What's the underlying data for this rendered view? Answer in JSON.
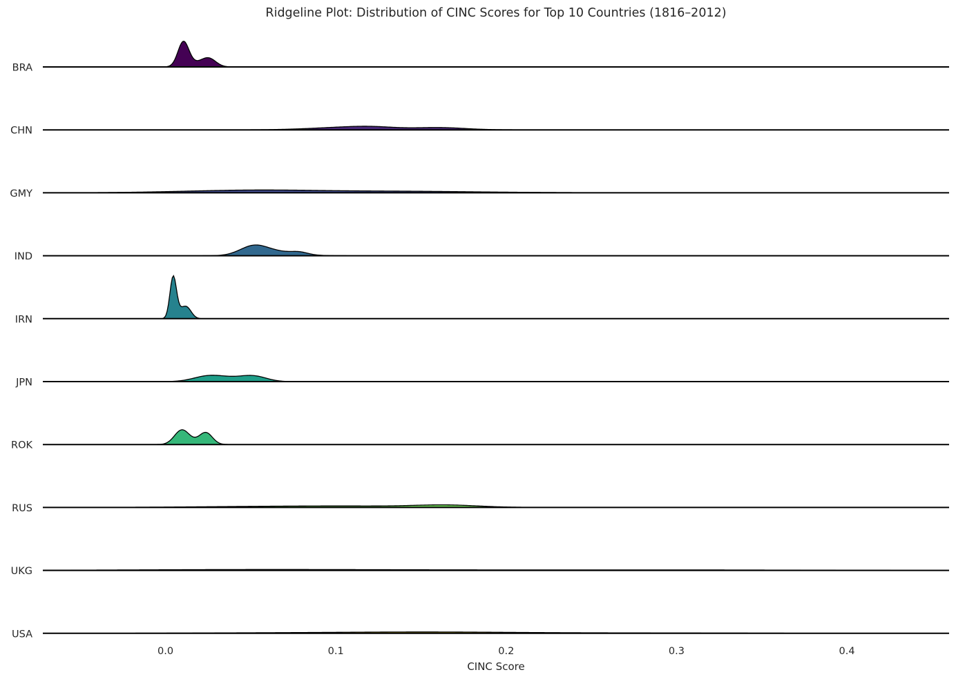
{
  "chart_data": {
    "type": "area",
    "subtype": "ridgeline",
    "title": "Ridgeline Plot: Distribution of CINC Scores for Top 10 Countries (1816–2012)",
    "xlabel": "CINC Score",
    "ylabel": "",
    "xlim": [
      -0.072,
      0.46
    ],
    "x_ticks": [
      0.0,
      0.1,
      0.2,
      0.3,
      0.4
    ],
    "x_tick_labels": [
      "0.0",
      "0.1",
      "0.2",
      "0.3",
      "0.4"
    ],
    "grid": false,
    "colormap": "viridis",
    "series": [
      {
        "name": "BRA",
        "color": "#440154",
        "peaks": [
          {
            "mu": 0.0105,
            "sigma": 0.0032,
            "h": 35
          },
          {
            "mu": 0.0255,
            "sigma": 0.0042,
            "h": 11
          },
          {
            "mu": 0.018,
            "sigma": 0.006,
            "h": 5
          }
        ]
      },
      {
        "name": "CHN",
        "color": "#482878",
        "peaks": [
          {
            "mu": 0.108,
            "sigma": 0.022,
            "h": 3.5
          },
          {
            "mu": 0.121,
            "sigma": 0.012,
            "h": 1.5
          },
          {
            "mu": 0.162,
            "sigma": 0.014,
            "h": 2.6
          },
          {
            "mu": 0.14,
            "sigma": 0.03,
            "h": 0.8
          }
        ]
      },
      {
        "name": "GMY",
        "color": "#3e4989",
        "peaks": [
          {
            "mu": 0.055,
            "sigma": 0.042,
            "h": 4
          },
          {
            "mu": 0.14,
            "sigma": 0.035,
            "h": 1.6
          },
          {
            "mu": 0.19,
            "sigma": 0.04,
            "h": 0.6
          }
        ]
      },
      {
        "name": "IND",
        "color": "#31688e",
        "peaks": [
          {
            "mu": 0.052,
            "sigma": 0.0082,
            "h": 14
          },
          {
            "mu": 0.069,
            "sigma": 0.011,
            "h": 5
          },
          {
            "mu": 0.079,
            "sigma": 0.0045,
            "h": 2.5
          }
        ]
      },
      {
        "name": "IRN",
        "color": "#26828e",
        "peaks": [
          {
            "mu": 0.0045,
            "sigma": 0.0019,
            "h": 58
          },
          {
            "mu": 0.0125,
            "sigma": 0.0028,
            "h": 15
          },
          {
            "mu": 0.008,
            "sigma": 0.003,
            "h": 8
          }
        ]
      },
      {
        "name": "JPN",
        "color": "#1f9e89",
        "peaks": [
          {
            "mu": 0.0245,
            "sigma": 0.0085,
            "h": 7
          },
          {
            "mu": 0.052,
            "sigma": 0.0075,
            "h": 7
          },
          {
            "mu": 0.038,
            "sigma": 0.01,
            "h": 4.5
          }
        ]
      },
      {
        "name": "ROK",
        "color": "#35b779",
        "peaks": [
          {
            "mu": 0.0095,
            "sigma": 0.0043,
            "h": 20
          },
          {
            "mu": 0.0238,
            "sigma": 0.0038,
            "h": 16
          },
          {
            "mu": 0.017,
            "sigma": 0.006,
            "h": 3
          }
        ]
      },
      {
        "name": "RUS",
        "color": "#6ece58",
        "peaks": [
          {
            "mu": 0.165,
            "sigma": 0.018,
            "h": 2.8
          },
          {
            "mu": 0.11,
            "sigma": 0.045,
            "h": 2
          },
          {
            "mu": 0.04,
            "sigma": 0.04,
            "h": 0.8
          }
        ]
      },
      {
        "name": "UKG",
        "color": "#b5de2b",
        "peaks": [
          {
            "mu": 0.05,
            "sigma": 0.07,
            "h": 1
          },
          {
            "mu": 0.2,
            "sigma": 0.12,
            "h": 0.6
          },
          {
            "mu": 0.32,
            "sigma": 0.05,
            "h": 0.3
          }
        ]
      },
      {
        "name": "USA",
        "color": "#fde725",
        "peaks": [
          {
            "mu": 0.155,
            "sigma": 0.045,
            "h": 1.4
          },
          {
            "mu": 0.08,
            "sigma": 0.06,
            "h": 0.8
          },
          {
            "mu": 0.24,
            "sigma": 0.06,
            "h": 0.6
          },
          {
            "mu": 0.33,
            "sigma": 0.04,
            "h": 0.2
          }
        ]
      }
    ]
  }
}
